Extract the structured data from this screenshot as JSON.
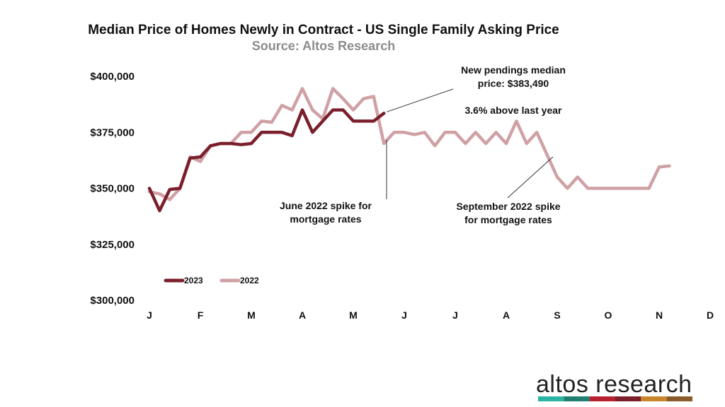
{
  "chart_data": {
    "type": "line",
    "title": "Median Price of Homes Newly in Contract - US Single Family Asking Price",
    "subtitle": "Source: Altos Research",
    "xlabel": "",
    "ylabel": "",
    "ylim": [
      300000,
      400000
    ],
    "ytick_labels": [
      "$400,000",
      "$375,000",
      "$350,000",
      "$325,000",
      "$300,000"
    ],
    "yticks": [
      400000,
      375000,
      350000,
      325000,
      300000
    ],
    "xtick_labels": [
      "J",
      "F",
      "M",
      "A",
      "M",
      "J",
      "J",
      "A",
      "S",
      "O",
      "N",
      "D"
    ],
    "xtick_weeks": [
      0,
      5,
      10,
      15,
      20,
      25,
      30,
      35,
      40,
      45,
      50,
      55
    ],
    "x_unit": "week of year",
    "grid": false,
    "legend_position": "lower-left",
    "series": [
      {
        "name": "2023",
        "color": "#7a1f2b",
        "values": [
          350000,
          340000,
          349500,
          350000,
          363500,
          364000,
          369000,
          370000,
          370000,
          369500,
          370000,
          375000,
          375000,
          375000,
          373500,
          385000,
          375000,
          380000,
          385000,
          385000,
          380000,
          380000,
          380000,
          383490
        ]
      },
      {
        "name": "2022",
        "color": "#cfa1a5",
        "values": [
          348500,
          347500,
          345000,
          350000,
          364000,
          362000,
          369000,
          370000,
          370000,
          375000,
          375000,
          380000,
          379500,
          387000,
          385000,
          394500,
          385000,
          381000,
          394500,
          390000,
          385000,
          390000,
          391000,
          370000,
          375000,
          375000,
          374000,
          375000,
          369000,
          375000,
          375000,
          370000,
          375000,
          370000,
          375000,
          370000,
          380000,
          370000,
          375000,
          365000,
          355000,
          350000,
          355000,
          350000,
          350000,
          350000,
          350000,
          350000,
          350000,
          350000,
          359500,
          360000
        ]
      }
    ],
    "annotations": [
      {
        "lines": [
          "New pendings median",
          "price:  $383,490"
        ]
      },
      {
        "lines": [
          "3.6% above last year"
        ]
      },
      {
        "lines": [
          "June 2022 spike for",
          "mortgage rates"
        ]
      },
      {
        "lines": [
          "September 2022 spike",
          "for mortgage rates"
        ]
      }
    ]
  },
  "logo": {
    "text": "altos research",
    "colors": [
      "#2bb3a3",
      "#1f7f73",
      "#b8202f",
      "#7a1f2b",
      "#c8852a",
      "#8a5a2a"
    ]
  }
}
